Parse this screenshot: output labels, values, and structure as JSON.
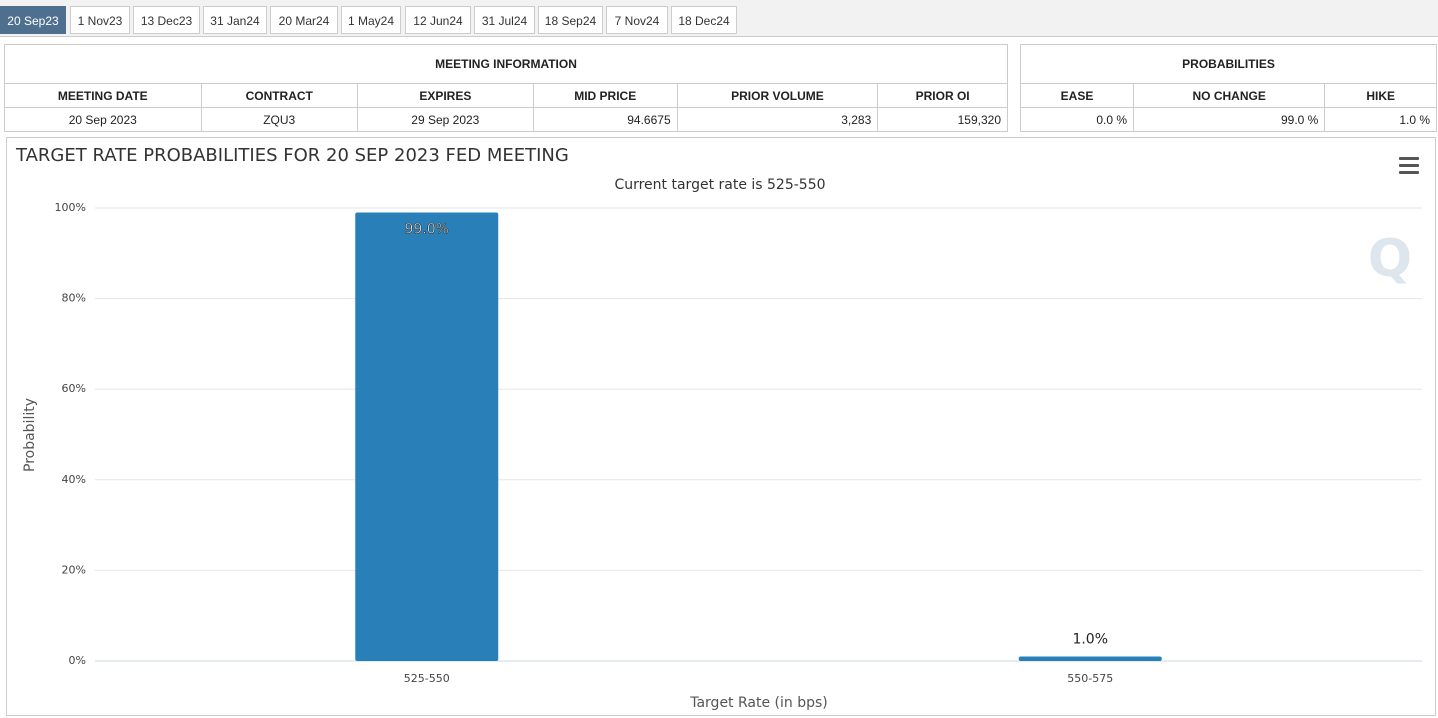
{
  "tabs": [
    "20 Sep23",
    "1 Nov23",
    "13 Dec23",
    "31 Jan24",
    "20 Mar24",
    "1 May24",
    "12 Jun24",
    "31 Jul24",
    "18 Sep24",
    "7 Nov24",
    "18 Dec24"
  ],
  "meeting_info": {
    "title": "MEETING INFORMATION",
    "headers": [
      "MEETING DATE",
      "CONTRACT",
      "EXPIRES",
      "MID PRICE",
      "PRIOR VOLUME",
      "PRIOR OI"
    ],
    "row": [
      "20 Sep 2023",
      "ZQU3",
      "29 Sep 2023",
      "94.6675",
      "3,283",
      "159,320"
    ]
  },
  "probabilities": {
    "title": "PROBABILITIES",
    "headers": [
      "EASE",
      "NO CHANGE",
      "HIKE"
    ],
    "row": [
      "0.0 %",
      "99.0 %",
      "1.0 %"
    ]
  },
  "chart_data": {
    "type": "bar",
    "title": "TARGET RATE PROBABILITIES FOR 20 SEP 2023 FED MEETING",
    "subtitle": "Current target rate is 525-550",
    "x_label": "Target Rate (in bps)",
    "y_label": "Probability",
    "categories": [
      "525-550",
      "550-575"
    ],
    "values": [
      99.0,
      1.0
    ],
    "value_labels": [
      "99.0%",
      "1.0%"
    ],
    "color": "#2980b9",
    "ylim": [
      0,
      100
    ],
    "yticks": [
      {
        "value": 0,
        "label": "0%"
      },
      {
        "value": 20,
        "label": "20%"
      },
      {
        "value": 40,
        "label": "40%"
      },
      {
        "value": 60,
        "label": "60%"
      },
      {
        "value": 80,
        "label": "80%"
      },
      {
        "value": 100,
        "label": "100%"
      }
    ],
    "grid": true
  }
}
